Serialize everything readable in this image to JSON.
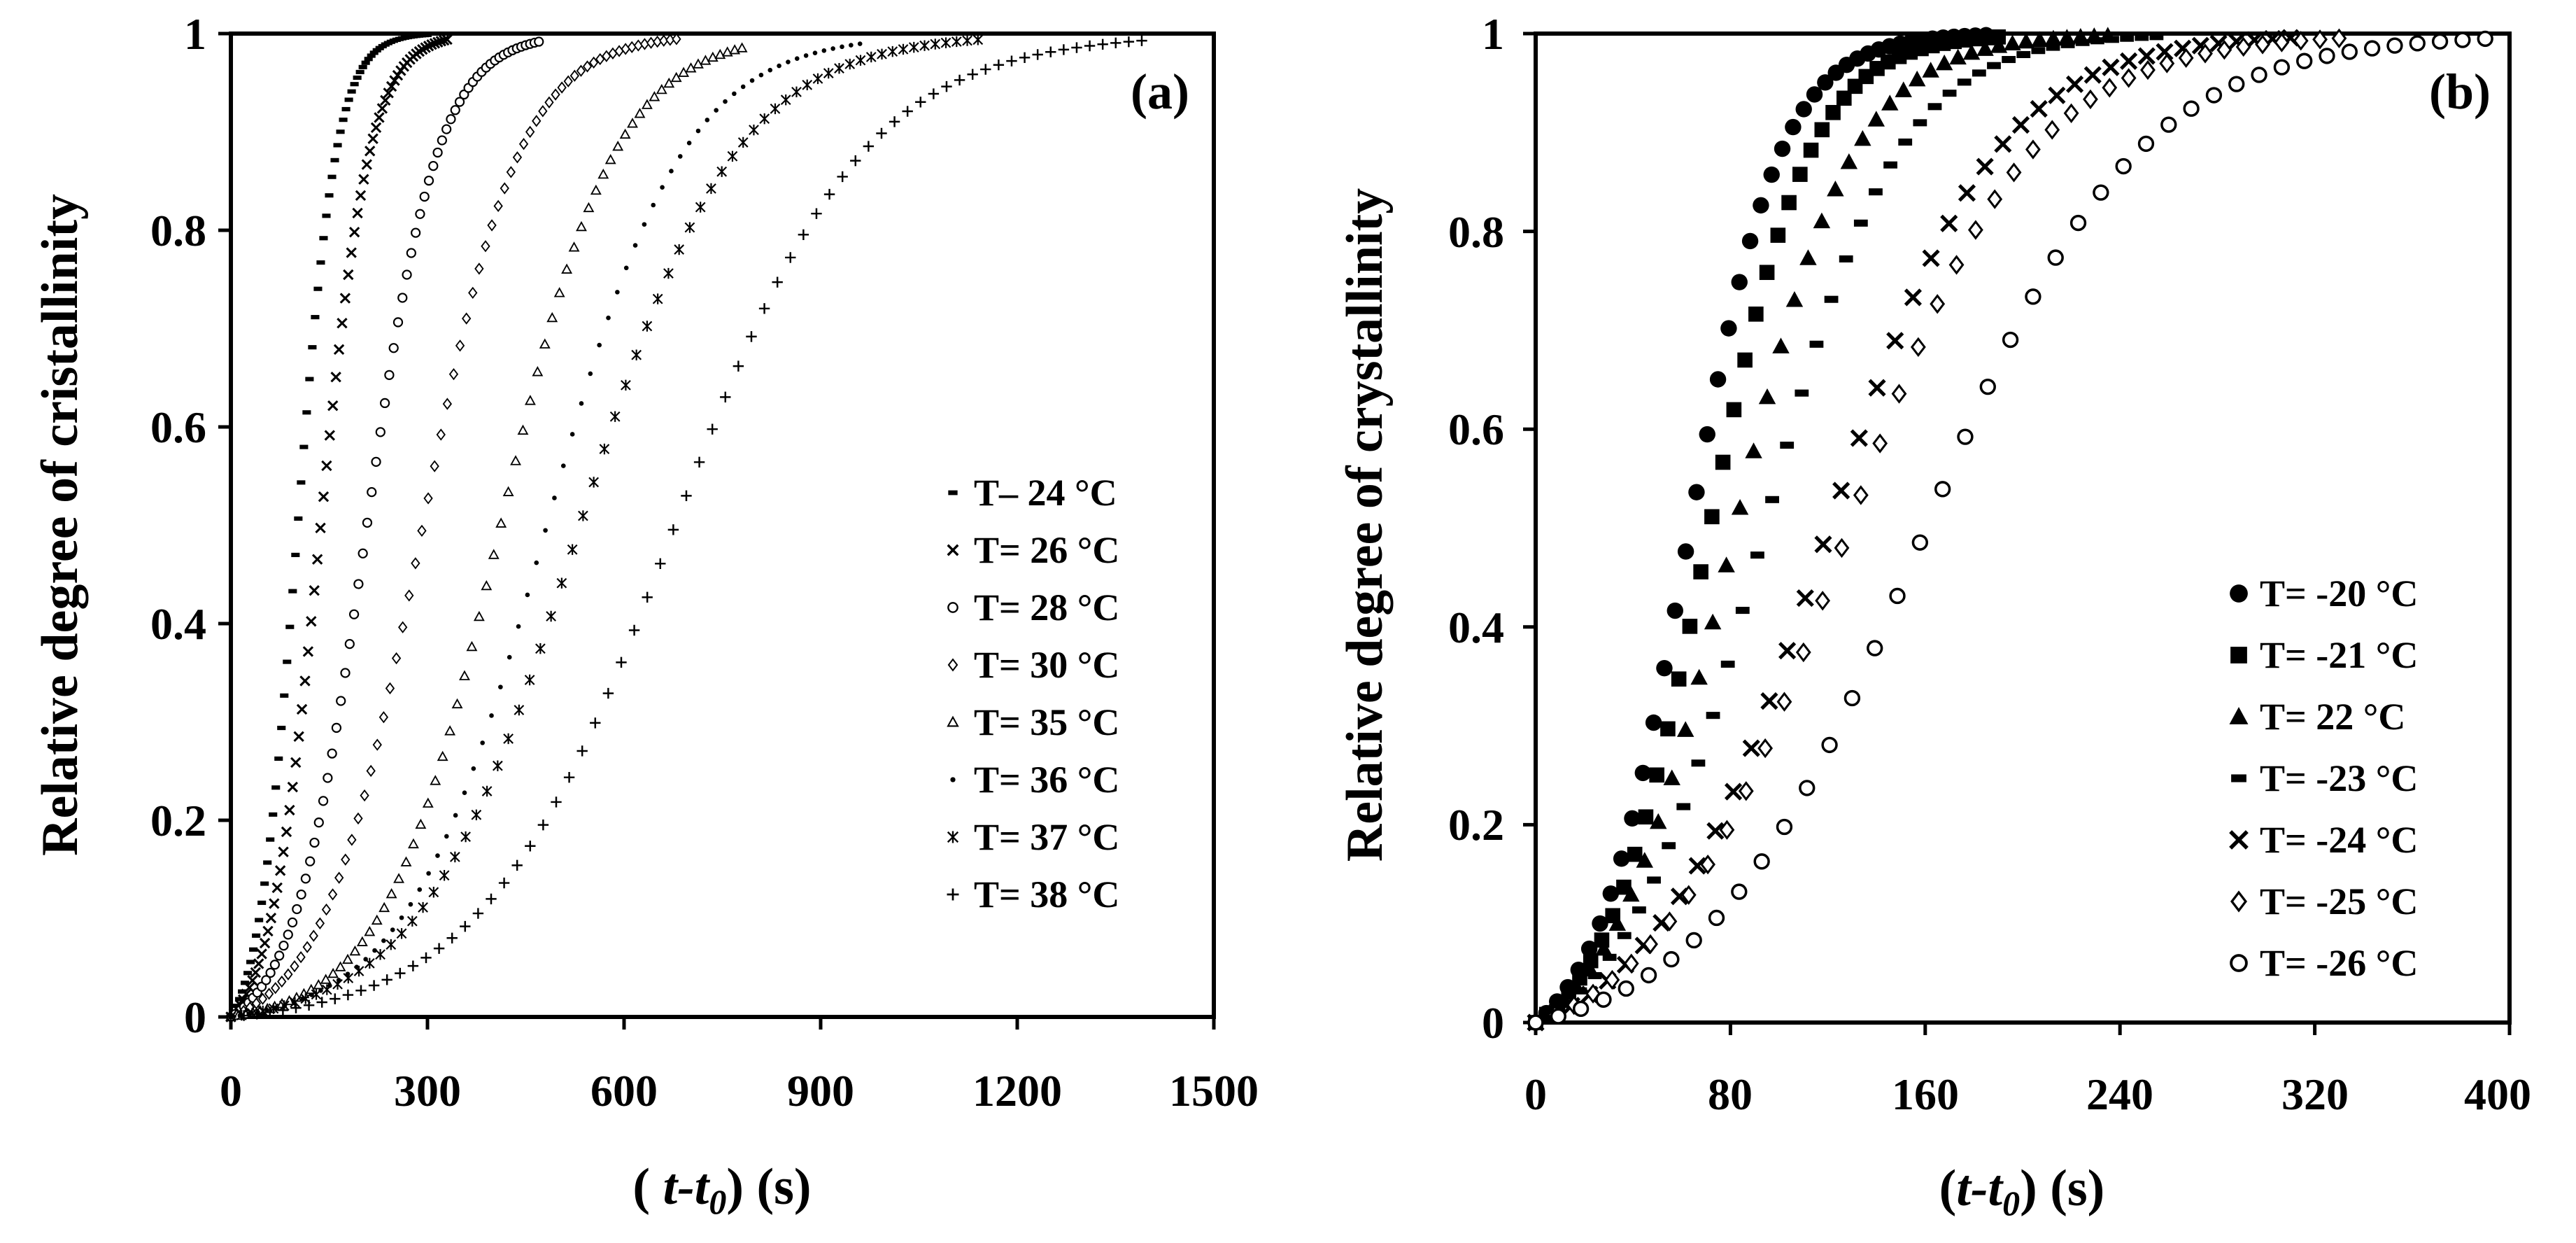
{
  "chart_data": [
    {
      "type": "scatter",
      "panel_label": "(a)",
      "xlabel_pre": "( ",
      "xlabel_var": "t-t",
      "xlabel_sub": "0",
      "xlabel_post": ") (s)",
      "ylabel": "Relative degree of cristallinity",
      "xlim": [
        0,
        1500
      ],
      "ylim": [
        0,
        1
      ],
      "xticks": [
        0,
        300,
        600,
        900,
        1200,
        1500
      ],
      "yticks": [
        0,
        0.2,
        0.4,
        0.6,
        0.8,
        1
      ],
      "ytick_labels": [
        "0",
        "0.2",
        "0.4",
        "0.6",
        "0.8",
        "1"
      ],
      "legend_position": "right",
      "series": [
        {
          "name": "T– 24 °C",
          "marker": "dash",
          "t_half": 100,
          "k": 30,
          "t_end": 300
        },
        {
          "name": "T= 26 °C",
          "marker": "x",
          "t_half": 135,
          "k": 38,
          "t_end": 330
        },
        {
          "name": "T= 28 °C",
          "marker": "circle-o",
          "t_half": 205,
          "k": 55,
          "t_end": 470
        },
        {
          "name": "T= 30 °C",
          "marker": "diamond-o",
          "t_half": 290,
          "k": 75,
          "t_end": 680
        },
        {
          "name": "T= 35 °C",
          "marker": "triangle-o",
          "t_half": 410,
          "k": 88,
          "t_end": 780
        },
        {
          "name": "T= 36 °C",
          "marker": "dot",
          "t_half": 480,
          "k": 105,
          "t_end": 960
        },
        {
          "name": "T= 37 °C",
          "marker": "star",
          "t_half": 530,
          "k": 120,
          "t_end": 1140
        },
        {
          "name": "T= 38 °C",
          "marker": "plus",
          "t_half": 675,
          "k": 145,
          "t_end": 1390
        }
      ]
    },
    {
      "type": "scatter",
      "panel_label": "(b)",
      "xlabel_pre": "(",
      "xlabel_var": "t-t",
      "xlabel_sub": "0",
      "xlabel_post": ") (s)",
      "ylabel": "Relative degree of crystallinity",
      "xlim": [
        0,
        400
      ],
      "ylim": [
        0,
        1
      ],
      "xticks": [
        0,
        80,
        160,
        240,
        320,
        400
      ],
      "yticks": [
        0,
        0.2,
        0.4,
        0.6,
        0.8,
        1
      ],
      "ytick_labels": [
        "0",
        "0.2",
        "0.4",
        "0.6",
        "0.8",
        "1"
      ],
      "legend_position": "bottom-right",
      "series": [
        {
          "name": "T= -20 °C",
          "marker": "circle-f",
          "t_half": 62,
          "k": 19,
          "t_end": 185
        },
        {
          "name": "T= -21 °C",
          "marker": "square-f",
          "t_half": 70,
          "k": 21,
          "t_end": 190
        },
        {
          "name": "T=  22 °C",
          "marker": "triangle-f",
          "t_half": 80,
          "k": 25,
          "t_end": 235
        },
        {
          "name": "T= -23 °C",
          "marker": "dash",
          "t_half": 92,
          "k": 28,
          "t_end": 255
        },
        {
          "name": "T= -24 °C",
          "marker": "x",
          "t_half": 118,
          "k": 35,
          "t_end": 310
        },
        {
          "name": "T= -25 °C",
          "marker": "diamond-o",
          "t_half": 126,
          "k": 38,
          "t_end": 330
        },
        {
          "name": "T= -26 °C",
          "marker": "circle-o",
          "t_half": 158,
          "k": 44,
          "t_end": 390
        }
      ]
    }
  ]
}
